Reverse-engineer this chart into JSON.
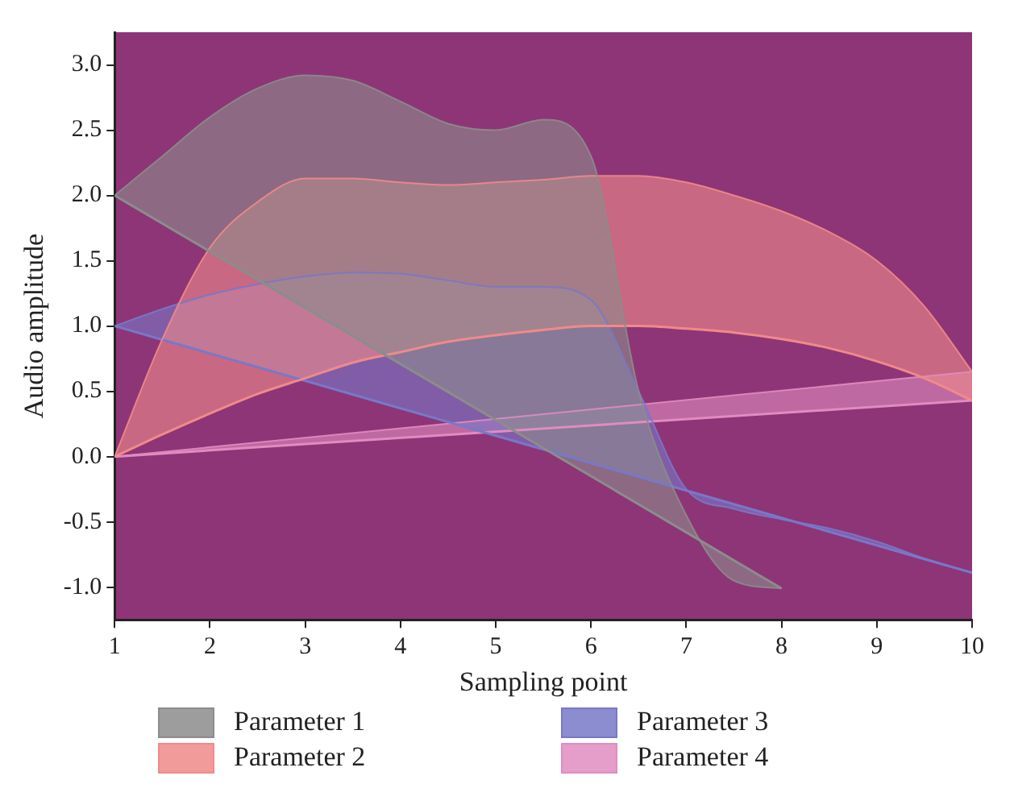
{
  "chart_data": {
    "type": "area",
    "xlabel": "Sampling point",
    "ylabel": "Audio amplitude",
    "xlim": [
      1,
      10
    ],
    "ylim": [
      -1.25,
      3.25
    ],
    "xticks": [
      1,
      2,
      3,
      4,
      5,
      6,
      7,
      8,
      9,
      10
    ],
    "yticks": [
      {
        "value": -1,
        "label": "-1.0"
      },
      {
        "value": -0.5,
        "label": "-0.5"
      },
      {
        "value": 0,
        "label": "0.0"
      },
      {
        "value": 0.5,
        "label": "0.5"
      },
      {
        "value": 1,
        "label": "1.0"
      },
      {
        "value": 1.5,
        "label": "1.5"
      },
      {
        "value": 2,
        "label": "2.0"
      },
      {
        "value": 2.5,
        "label": "2.5"
      },
      {
        "value": 3,
        "label": "3.0"
      }
    ],
    "grid": false,
    "legend": "bottom",
    "series": [
      {
        "name": "Parameter 1",
        "color": "#8c8c8c",
        "x": [
          1,
          1.5,
          2,
          2.5,
          3,
          3.5,
          4,
          4.5,
          5,
          5.5,
          6,
          6.5,
          7,
          7.5,
          8
        ],
        "values": [
          2.0,
          2.3,
          2.6,
          2.82,
          2.92,
          2.88,
          2.72,
          2.55,
          2.5,
          2.58,
          2.3,
          0.5,
          -0.45,
          -0.95,
          -1.01
        ]
      },
      {
        "type": "line",
        "color": "#8c8c8c",
        "x": [
          1,
          2,
          3,
          4,
          5,
          7,
          8
        ],
        "values": [
          2.0,
          1.57,
          1.14,
          0.71,
          0.28,
          -0.58,
          -1.01
        ]
      },
      {
        "name": "Parameter 2",
        "color": "#f08a8a",
        "x": [
          1,
          1.5,
          2,
          2.5,
          3,
          3.5,
          4,
          4.5,
          5,
          5.5,
          6,
          6.5,
          7,
          7.5,
          8,
          8.5,
          9,
          9.5,
          10
        ],
        "values": [
          0,
          0.9,
          1.6,
          1.95,
          2.13,
          2.13,
          2.1,
          2.08,
          2.1,
          2.12,
          2.15,
          2.15,
          2.1,
          2.0,
          1.88,
          1.72,
          1.5,
          1.15,
          0.65
        ]
      },
      {
        "type": "line",
        "color": "#f08a8a",
        "x": [
          1,
          1.5,
          2,
          2.5,
          3,
          3.5,
          4,
          4.5,
          5,
          5.5,
          6,
          6.5,
          7,
          7.5,
          8,
          8.5,
          9,
          9.5,
          10
        ],
        "values": [
          0,
          0.17,
          0.33,
          0.48,
          0.6,
          0.72,
          0.8,
          0.88,
          0.93,
          0.97,
          1.0,
          1.0,
          0.98,
          0.95,
          0.9,
          0.83,
          0.73,
          0.6,
          0.43
        ]
      },
      {
        "name": "Parameter 3",
        "color": "#7878c8",
        "x": [
          1,
          1.5,
          2,
          2.5,
          3,
          3.5,
          4,
          4.5,
          5,
          5.5,
          6,
          6.5,
          7,
          7.5,
          8,
          8.5,
          9,
          9.5,
          10
        ],
        "values": [
          1.0,
          1.13,
          1.24,
          1.32,
          1.38,
          1.41,
          1.4,
          1.35,
          1.3,
          1.3,
          1.2,
          0.5,
          -0.25,
          -0.4,
          -0.48,
          -0.55,
          -0.65,
          -0.78,
          -0.89
        ]
      },
      {
        "type": "line",
        "color": "#7878c8",
        "x": [
          1,
          2,
          3,
          4,
          5,
          7,
          8,
          9,
          10
        ],
        "values": [
          1,
          0.79,
          0.58,
          0.37,
          0.16,
          -0.26,
          -0.47,
          -0.68,
          -0.89
        ]
      },
      {
        "name": "Parameter 4",
        "color": "#e08cc0",
        "x": [
          1,
          10
        ],
        "values": [
          0,
          0.65
        ]
      },
      {
        "type": "line",
        "color": "#e08cc0",
        "x": [
          1,
          10
        ],
        "values": [
          0,
          0.43
        ]
      }
    ]
  }
}
